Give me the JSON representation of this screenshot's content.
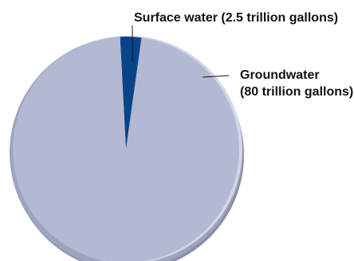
{
  "chart_data": {
    "type": "pie",
    "title": "",
    "slices": [
      {
        "label_lines": [
          "Surface water (2.5 trillion gallons)"
        ],
        "value": 2.5,
        "color": "#0a4488"
      },
      {
        "label_lines": [
          "Groundwater",
          "(80 trillion gallons)"
        ],
        "value": 80,
        "color": "#b3b9d2"
      }
    ],
    "colors": {
      "rim_outer": "#9ea4bd",
      "rim_highlight": "#d2d6e6",
      "rim_shadow": "#8a90a8",
      "text": "#111111"
    }
  }
}
